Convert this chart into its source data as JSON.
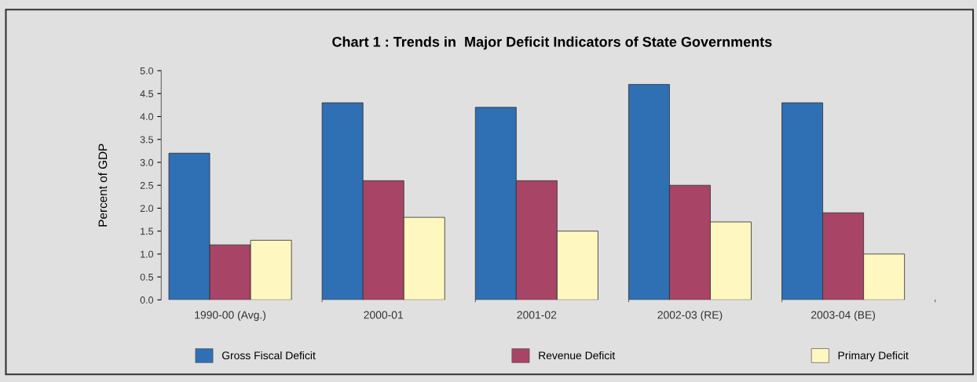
{
  "chart_data": {
    "type": "bar",
    "title": "Chart 1 : Trends in  Major Deficit Indicators of State Governments",
    "ylabel": "Percent of GDP",
    "categories": [
      "1990-00 (Avg.)",
      "2000-01",
      "2001-02",
      "2002-03 (RE)",
      "2003-04 (BE)"
    ],
    "series": [
      {
        "name": "Gross Fiscal Deficit",
        "color": "#2f6fb3",
        "values": [
          3.2,
          4.3,
          4.2,
          4.7,
          4.3
        ]
      },
      {
        "name": "Revenue Deficit",
        "color": "#a84465",
        "values": [
          1.2,
          2.6,
          2.6,
          2.5,
          1.9
        ]
      },
      {
        "name": "Primary Deficit",
        "color": "#fff7c0",
        "values": [
          1.3,
          1.8,
          1.5,
          1.7,
          1.0
        ]
      }
    ],
    "ylim": [
      0,
      5
    ],
    "yticks": [
      {
        "value": 0,
        "label": "0.0"
      },
      {
        "value": 0.5,
        "label": "0.5"
      },
      {
        "value": 1,
        "label": "1.0"
      },
      {
        "value": 1.5,
        "label": "1.5"
      },
      {
        "value": 2,
        "label": "2.0"
      },
      {
        "value": 2.5,
        "label": "2.5"
      },
      {
        "value": 3,
        "label": "3.0"
      },
      {
        "value": 3.5,
        "label": "3.5"
      },
      {
        "value": 4,
        "label": "4.0"
      },
      {
        "value": 4.5,
        "label": "4.5"
      },
      {
        "value": 5,
        "label": "5.0"
      }
    ],
    "grid": false,
    "legend": "bottom"
  }
}
